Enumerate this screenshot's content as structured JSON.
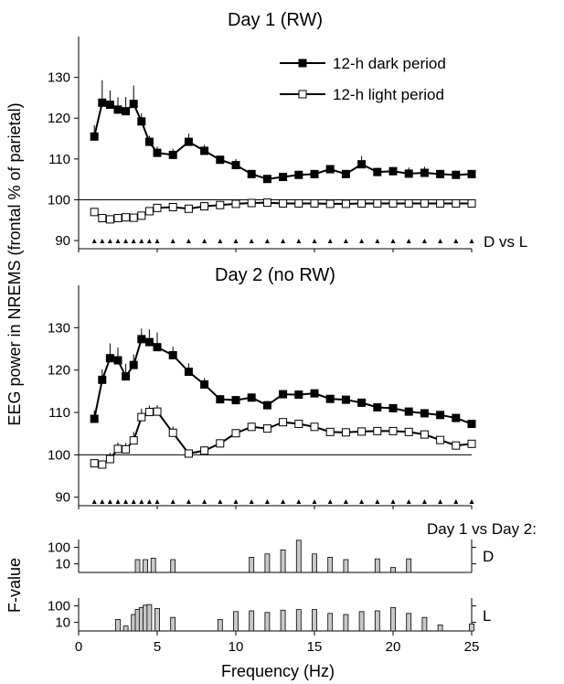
{
  "figure": {
    "ylabel_main": "EEG power in NREMS (frontal % of parietal)",
    "ylabel_f": "F-value",
    "xlabel": "Frequency (Hz)",
    "comparison_label": "Day 1 vs Day 2:",
    "d_label": "D",
    "l_label": "L"
  },
  "chart_data": [
    {
      "type": "line",
      "title": "Day 1 (RW)",
      "ylim": [
        88,
        140
      ],
      "yticks": [
        90,
        100,
        110,
        120,
        130
      ],
      "xlim": [
        0,
        25
      ],
      "reference_line": 100,
      "legend": "top-right",
      "significance_label": "D vs L",
      "significance_x": [
        1,
        1.5,
        2,
        2.5,
        3,
        3.5,
        4,
        4.5,
        5,
        6,
        7,
        8,
        9,
        10,
        11,
        12,
        13,
        14,
        15,
        16,
        17,
        18,
        19,
        20,
        21,
        22,
        23,
        24,
        25
      ],
      "series": [
        {
          "name": "12-h dark period",
          "marker": "filled",
          "x": [
            1,
            1.5,
            2,
            2.5,
            3,
            3.5,
            4,
            4.5,
            5,
            6,
            7,
            8,
            9,
            10,
            11,
            12,
            13,
            14,
            15,
            16,
            17,
            18,
            19,
            20,
            21,
            22,
            23,
            24,
            25
          ],
          "values": [
            115.5,
            123.8,
            123.3,
            122.1,
            121.7,
            123.5,
            119.2,
            114.2,
            111.5,
            111.0,
            114.2,
            112.0,
            109.8,
            108.5,
            106.3,
            105.1,
            105.6,
            106.1,
            106.3,
            107.5,
            106.3,
            108.7,
            106.8,
            107.0,
            106.4,
            106.6,
            106.3,
            106.1,
            106.3
          ],
          "errors": [
            2.8,
            5.5,
            3.5,
            3.0,
            3.5,
            4.5,
            2.0,
            1.5,
            1.5,
            1.5,
            2.0,
            1.5,
            1.0,
            1.5,
            1.0,
            0.8,
            1.0,
            1.0,
            1.0,
            1.0,
            1.0,
            2.0,
            1.0,
            1.0,
            1.5,
            1.5,
            1.0,
            1.0,
            1.0
          ]
        },
        {
          "name": "12-h light period",
          "marker": "open",
          "x": [
            1,
            1.5,
            2,
            2.5,
            3,
            3.5,
            4,
            4.5,
            5,
            6,
            7,
            8,
            9,
            10,
            11,
            12,
            13,
            14,
            15,
            16,
            17,
            18,
            19,
            20,
            21,
            22,
            23,
            24,
            25
          ],
          "values": [
            97.0,
            95.5,
            95.2,
            95.5,
            95.7,
            95.6,
            96.1,
            97.2,
            98.0,
            98.2,
            97.8,
            98.4,
            98.7,
            99.0,
            99.2,
            99.3,
            99.1,
            99.1,
            99.1,
            99.0,
            99.0,
            99.1,
            99.1,
            99.1,
            99.1,
            99.1,
            99.1,
            99.1,
            99.1
          ],
          "errors": [
            0.5,
            0.4,
            0.4,
            0.4,
            0.4,
            0.4,
            0.4,
            0.5,
            0.5,
            0.4,
            0.4,
            0.4,
            0.4,
            0.4,
            0.3,
            0.3,
            0.3,
            0.3,
            0.3,
            0.3,
            0.3,
            0.3,
            0.3,
            0.3,
            0.3,
            0.3,
            0.3,
            0.3,
            0.3
          ]
        }
      ]
    },
    {
      "type": "line",
      "title": "Day 2 (no RW)",
      "ylim": [
        88,
        140
      ],
      "yticks": [
        90,
        100,
        110,
        120,
        130
      ],
      "xlim": [
        0,
        25
      ],
      "reference_line": 100,
      "significance_x": [
        1,
        1.5,
        2,
        2.5,
        3,
        3.5,
        4,
        4.5,
        5,
        6,
        7,
        8,
        9,
        10,
        11,
        12,
        13,
        14,
        15,
        16,
        17,
        18,
        19,
        20,
        21,
        22,
        23,
        24,
        25
      ],
      "series": [
        {
          "name": "12-h dark period",
          "marker": "filled",
          "x": [
            1,
            1.5,
            2,
            2.5,
            3,
            3.5,
            4,
            4.5,
            5,
            6,
            7,
            8,
            9,
            10,
            11,
            12,
            13,
            14,
            15,
            16,
            17,
            18,
            19,
            20,
            21,
            22,
            23,
            24,
            25
          ],
          "values": [
            108.5,
            117.7,
            122.8,
            122.3,
            118.5,
            121.2,
            127.3,
            126.6,
            125.4,
            123.5,
            119.6,
            116.6,
            113.1,
            112.9,
            113.5,
            111.7,
            114.3,
            114.2,
            114.5,
            113.2,
            113.0,
            112.3,
            111.2,
            111.0,
            110.2,
            109.8,
            109.4,
            108.7,
            107.3
          ],
          "errors": [
            2.0,
            2.5,
            3.5,
            3.0,
            3.0,
            2.5,
            2.5,
            3.0,
            3.5,
            2.0,
            2.0,
            1.5,
            1.0,
            1.0,
            1.0,
            1.0,
            1.0,
            1.0,
            0.8,
            0.8,
            0.8,
            0.8,
            0.8,
            0.8,
            0.8,
            0.8,
            0.8,
            0.8,
            0.8
          ]
        },
        {
          "name": "12-h light period",
          "marker": "open",
          "x": [
            1,
            1.5,
            2,
            2.5,
            3,
            3.5,
            4,
            4.5,
            5,
            6,
            7,
            8,
            9,
            10,
            11,
            12,
            13,
            14,
            15,
            16,
            17,
            18,
            19,
            20,
            21,
            22,
            23,
            24,
            25
          ],
          "values": [
            98.0,
            97.7,
            99.0,
            101.4,
            101.3,
            103.4,
            108.9,
            110.1,
            110.2,
            105.2,
            100.3,
            101.0,
            102.7,
            105.1,
            106.6,
            106.2,
            107.7,
            107.3,
            106.6,
            105.4,
            105.3,
            105.5,
            105.6,
            105.6,
            105.4,
            104.8,
            103.5,
            102.2,
            102.6
          ],
          "errors": [
            0.8,
            1.0,
            1.5,
            1.5,
            1.5,
            2.0,
            2.0,
            1.5,
            1.5,
            1.5,
            1.0,
            1.0,
            1.0,
            1.0,
            1.0,
            0.8,
            0.8,
            0.8,
            0.8,
            0.8,
            0.8,
            0.8,
            0.8,
            0.8,
            0.8,
            0.8,
            0.8,
            0.8,
            0.8
          ]
        }
      ]
    },
    {
      "type": "bar",
      "label": "D",
      "scale": "log",
      "yticks": [
        10,
        100
      ],
      "xlim": [
        0,
        25
      ],
      "x": [
        3.75,
        4.25,
        4.75,
        6,
        11,
        12,
        13,
        14,
        15,
        16,
        17,
        19,
        20,
        21
      ],
      "values": [
        18,
        18,
        22,
        18,
        25,
        40,
        70,
        270,
        40,
        25,
        18,
        20,
        6,
        20
      ]
    },
    {
      "type": "bar",
      "label": "L",
      "scale": "log",
      "yticks": [
        10,
        100
      ],
      "xlim": [
        0,
        25
      ],
      "x": [
        2.5,
        3,
        3.5,
        3.75,
        4,
        4.25,
        4.5,
        5,
        6,
        9,
        10,
        11,
        12,
        13,
        14,
        15,
        16,
        17,
        18,
        19,
        20,
        21,
        22,
        23,
        25
      ],
      "values": [
        15,
        6,
        30,
        60,
        80,
        110,
        120,
        70,
        20,
        15,
        45,
        50,
        40,
        55,
        60,
        60,
        35,
        30,
        45,
        50,
        80,
        35,
        20,
        7,
        8
      ]
    }
  ]
}
